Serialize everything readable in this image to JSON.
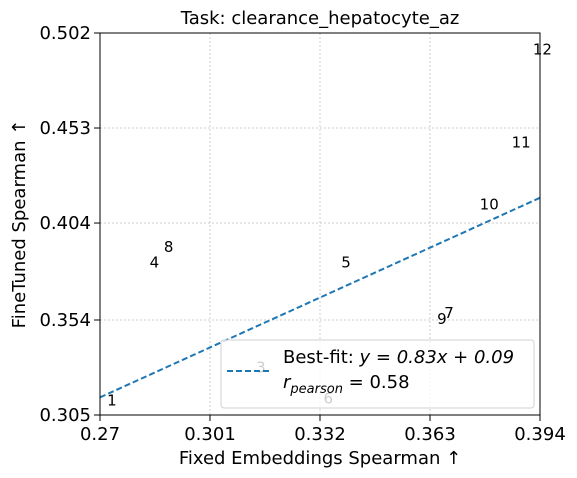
{
  "chart_data": {
    "type": "scatter",
    "title": "Task: clearance_hepatocyte_az",
    "xlabel": "Fixed Embeddings Spearman ↑",
    "ylabel": "FineTuned Spearman ↑",
    "xlim": [
      0.27,
      0.394
    ],
    "ylim": [
      0.305,
      0.502
    ],
    "x_ticks": [
      0.27,
      0.301,
      0.332,
      0.363,
      0.394
    ],
    "x_tick_labels": [
      "0.27",
      "0.301",
      "0.332",
      "0.363",
      "0.394"
    ],
    "y_ticks": [
      0.305,
      0.354,
      0.404,
      0.453,
      0.502
    ],
    "y_tick_labels": [
      "0.305",
      "0.354",
      "0.404",
      "0.453",
      "0.502"
    ],
    "grid": true,
    "points": [
      {
        "label": "1",
        "x": 0.272,
        "y": 0.31
      },
      {
        "label": "3",
        "x": 0.314,
        "y": 0.327
      },
      {
        "label": "4",
        "x": 0.284,
        "y": 0.381
      },
      {
        "label": "5",
        "x": 0.338,
        "y": 0.381
      },
      {
        "label": "6",
        "x": 0.333,
        "y": 0.311
      },
      {
        "label": "7",
        "x": 0.367,
        "y": 0.355
      },
      {
        "label": "8",
        "x": 0.288,
        "y": 0.389
      },
      {
        "label": "9",
        "x": 0.365,
        "y": 0.352
      },
      {
        "label": "10",
        "x": 0.377,
        "y": 0.411
      },
      {
        "label": "11",
        "x": 0.386,
        "y": 0.443
      },
      {
        "label": "12",
        "x": 0.392,
        "y": 0.491
      }
    ],
    "fit": {
      "slope": 0.83,
      "intercept": 0.09
    },
    "legend": {
      "position": "lower-right",
      "line1": "Best-fit: ",
      "line1_math": "y = 0.83x + 0.09",
      "line2_r": "r",
      "line2_sub": "pearson",
      "line2_rest": " = 0.58"
    },
    "colors": {
      "fit_line": "#1f77b4",
      "grid": "#cccccc"
    }
  }
}
